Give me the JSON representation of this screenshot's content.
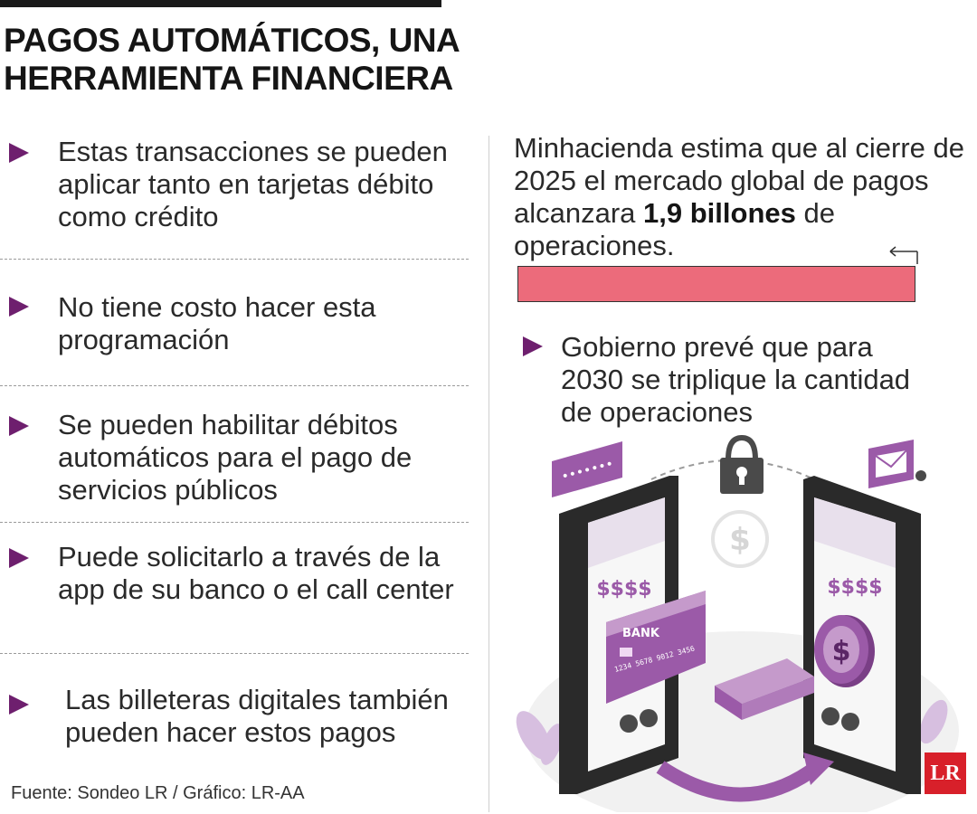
{
  "title": "PAGOS AUTOMÁTICOS, UNA HERRAMIENTA FINANCIERA",
  "bullets": [
    {
      "text": "Estas transacciones se pueden aplicar tanto en tarjetas débito como crédito"
    },
    {
      "text": "No tiene costo hacer esta programación"
    },
    {
      "text": "Se pueden habilitar débitos automáticos para el pago de servicios públicos"
    },
    {
      "text": "Puede solicitarlo a través de la app de su banco o el call center"
    },
    {
      "text": "Las billeteras digitales también pueden hacer estos pagos"
    }
  ],
  "source": "Fuente: Sondeo LR / Gráfico: LR-AA",
  "right": {
    "text_before": "Minhacienda estima que al cierre de 2025 el mercado global de pagos alcanzara ",
    "highlight": "1,9 billones",
    "text_after": " de operaciones.",
    "bar_fraction": 1.0,
    "bullet_text": "Gobierno prevé que para 2030 se triplique la cantidad de operaciones"
  },
  "illustration": {
    "price_label_left": "$$$$",
    "price_label_right": "$$$$",
    "card_brand": "BANK",
    "card_number": "1234 5678 9012 3456",
    "coin_symbol": "$"
  },
  "logo": "LR",
  "colors": {
    "accent": "#6e1f6e",
    "bar": "#ec6b7b",
    "purple": "#9b5aa8",
    "light_purple": "#c59acb",
    "logo": "#d8202a"
  }
}
